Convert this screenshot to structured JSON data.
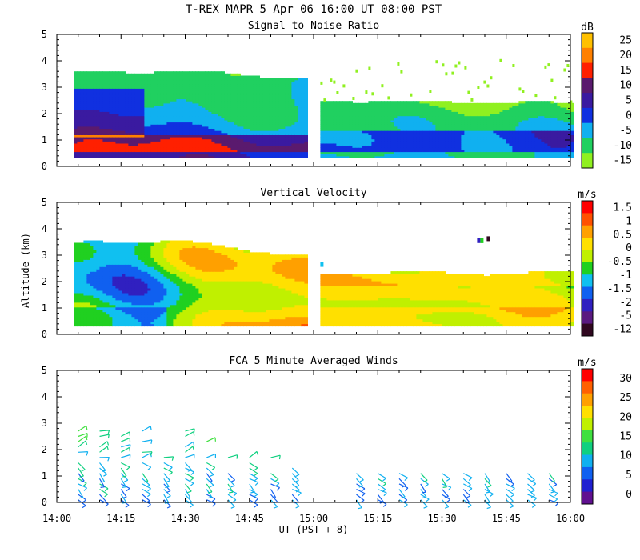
{
  "figure": {
    "main_title": "T-REX   MAPR   5 Apr 06   16:00 UT   08:00   PST",
    "xlabel": "UT  (PST + 8)",
    "x_ticks": [
      "14:00",
      "14:15",
      "14:30",
      "14:45",
      "15:00",
      "15:15",
      "15:30",
      "15:45",
      "16:00"
    ]
  },
  "chart_data": [
    {
      "type": "heatmap",
      "title": "Signal to Noise Ratio",
      "ylabel": "",
      "xlim": [
        "14:00",
        "16:00"
      ],
      "ylim": [
        0,
        5
      ],
      "y_ticks": [
        "0",
        "1",
        "2",
        "3",
        "4",
        "5"
      ],
      "data_gap": [
        "14:58",
        "15:01"
      ],
      "colorbar": {
        "unit": "dB",
        "labels": [
          "25",
          "20",
          "15",
          "10",
          "5",
          "0",
          "-5",
          "-10",
          "-15"
        ],
        "colors": [
          "#ffc000",
          "#ff8000",
          "#ff2000",
          "#5a1a6e",
          "#3a1aa0",
          "#1030e0",
          "#10b0f0",
          "#20d060",
          "#90f020"
        ]
      }
    },
    {
      "type": "heatmap",
      "title": "Vertical Velocity",
      "ylabel": "Altitude (km)",
      "xlim": [
        "14:00",
        "16:00"
      ],
      "ylim": [
        0,
        5
      ],
      "y_ticks": [
        "0",
        "1",
        "2",
        "3",
        "4",
        "5"
      ],
      "data_gap": [
        "14:58",
        "15:01"
      ],
      "colorbar": {
        "unit": "m/s",
        "labels": [
          "1.5",
          "1",
          "0.5",
          "0",
          "-0.5",
          "-1",
          "-1.5",
          "-2",
          "-5",
          "-12"
        ],
        "colors": [
          "#ff0000",
          "#ff5000",
          "#ffa000",
          "#ffe000",
          "#c0f000",
          "#20d020",
          "#10c0f0",
          "#1060f0",
          "#3020c0",
          "#5a1a80",
          "#300820"
        ]
      }
    },
    {
      "type": "scatter",
      "title": "FCA 5 Minute Averaged Winds",
      "ylabel": "",
      "xlim": [
        "14:00",
        "16:00"
      ],
      "ylim": [
        0,
        5
      ],
      "y_ticks": [
        "0",
        "1",
        "2",
        "3",
        "4",
        "5"
      ],
      "colorbar": {
        "unit": "m/s",
        "labels": [
          "30",
          "25",
          "20",
          "15",
          "10",
          "5",
          "0"
        ],
        "colors": [
          "#ff0000",
          "#ff6000",
          "#ffa000",
          "#ffe000",
          "#c0f000",
          "#40e040",
          "#10d080",
          "#10b0f0",
          "#1060f0",
          "#2020d0",
          "#601090"
        ]
      }
    }
  ]
}
